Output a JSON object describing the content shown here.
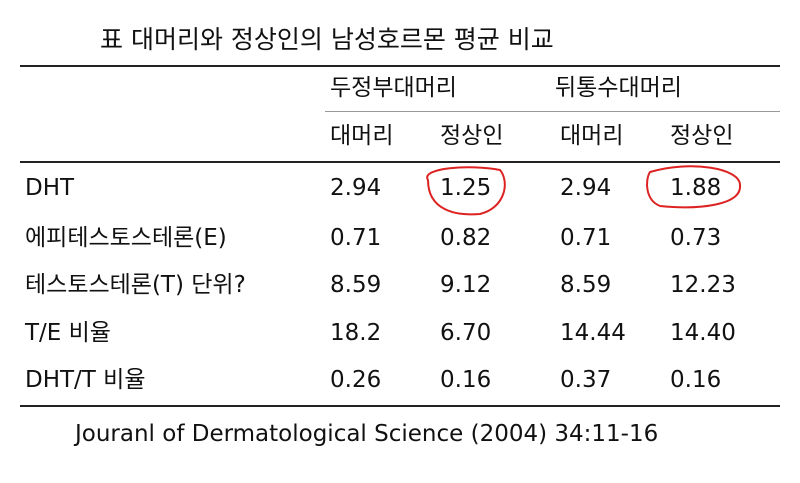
{
  "title": "표 대머리와 정상인의 남성호르몬 평균 비교",
  "table": {
    "groups": [
      "두정부대머리",
      "뒤통수대머리"
    ],
    "subheaders": [
      "대머리",
      "정상인",
      "대머리",
      "정상인"
    ],
    "rows": [
      [
        "DHT",
        "2.94",
        "1.25",
        "2.94",
        "1.88"
      ],
      [
        "에피테스토스테론(E)",
        "0.71",
        "0.82",
        "0.71",
        "0.73"
      ],
      [
        "테스토스테론(T) 단위?",
        "8.59",
        "9.12",
        "8.59",
        "12.23"
      ],
      [
        "T/E 비율",
        "18.2",
        "6.70",
        "14.44",
        "14.40"
      ],
      [
        "DHT/T 비율",
        "0.26",
        "0.16",
        "0.37",
        "0.16"
      ]
    ]
  },
  "source": "Jouranl of Dermatological Science (2004) 34:11-16"
}
